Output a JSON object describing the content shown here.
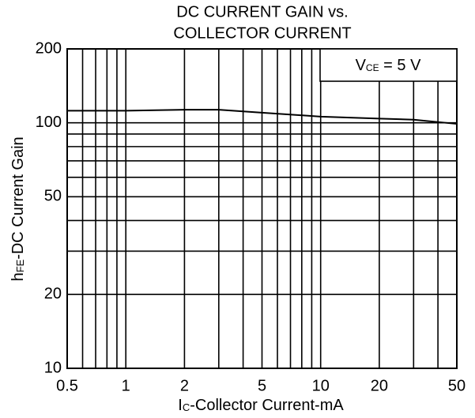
{
  "chart_data": {
    "type": "line",
    "title": [
      "DC CURRENT GAIN vs.",
      "COLLECTOR CURRENT"
    ],
    "x_label": {
      "main": "I",
      "sub": "C",
      "rest": "-Collector Current-mA"
    },
    "y_label": {
      "main": "h",
      "sub": "FE",
      "rest": "-DC Current Gain"
    },
    "annotation": {
      "main": "V",
      "sub": "CE",
      "rest": " = 5 V"
    },
    "xlog": true,
    "ylog": true,
    "grid": true,
    "xlim": [
      0.5,
      50
    ],
    "ylim": [
      10,
      200
    ],
    "xticks": [
      0.5,
      1,
      2,
      5,
      10,
      20,
      50
    ],
    "yticks": [
      10,
      20,
      50,
      100,
      200
    ],
    "xgrid": [
      0.6,
      0.7,
      0.8,
      0.9,
      3,
      4,
      6,
      7,
      8,
      9,
      30,
      40
    ],
    "ygrid": [
      30,
      40,
      60,
      70,
      80,
      90
    ],
    "series": [
      {
        "color": "#000000",
        "x": [
          0.5,
          1,
          2,
          3,
          5,
          10,
          20,
          30,
          50
        ],
        "values": [
          112,
          112,
          113,
          113,
          110,
          106,
          104,
          103,
          99
        ]
      }
    ]
  }
}
